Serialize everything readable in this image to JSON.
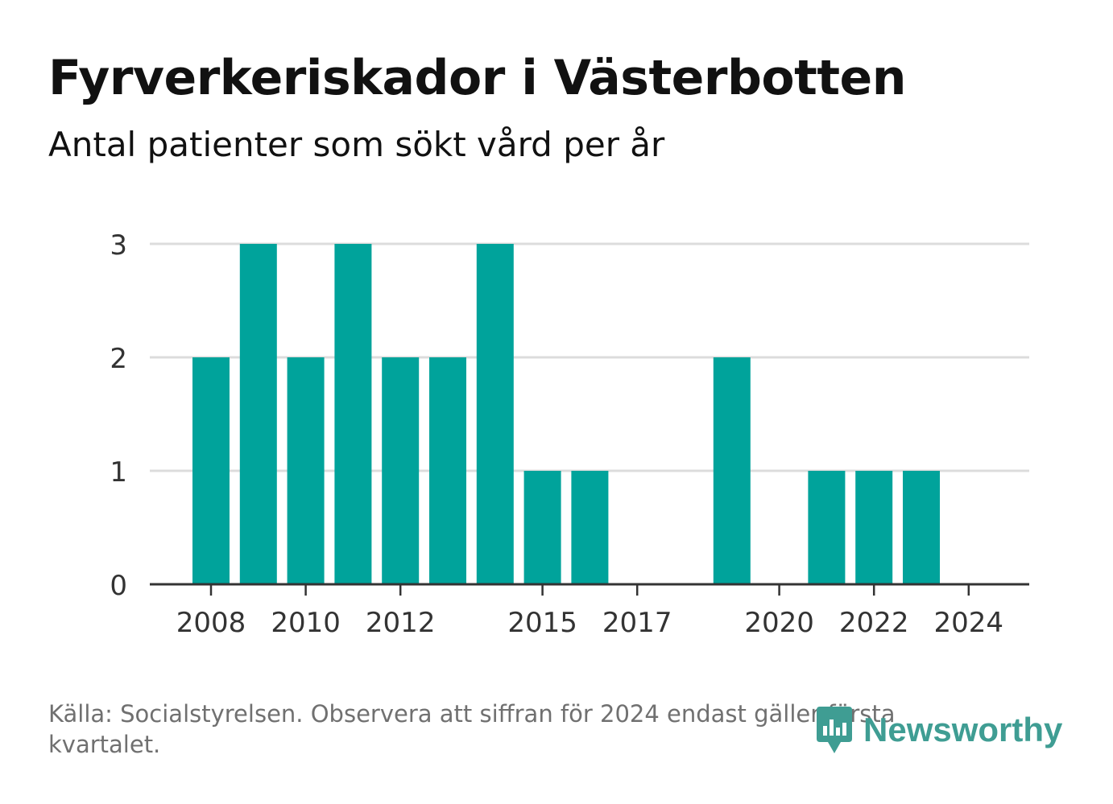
{
  "header": {
    "title": "Fyrverkeriskador i Västerbotten",
    "subtitle": "Antal patienter som sökt vård per år"
  },
  "chart_data": {
    "type": "bar",
    "x": [
      2008,
      2009,
      2010,
      2011,
      2012,
      2013,
      2014,
      2015,
      2016,
      2017,
      2018,
      2019,
      2020,
      2021,
      2022,
      2023,
      2024
    ],
    "values": [
      2,
      3,
      2,
      3,
      2,
      2,
      3,
      1,
      1,
      0,
      0,
      2,
      0,
      1,
      1,
      1,
      0
    ],
    "x_tick_labels": [
      2008,
      2010,
      2012,
      2015,
      2017,
      2020,
      2022,
      2024
    ],
    "y_ticks": [
      0,
      1,
      2,
      3
    ],
    "ylim": [
      0,
      3
    ],
    "grid": true,
    "bar_color": "#00a39b"
  },
  "footer": {
    "source": "Källa: Socialstyrelsen. Observera att siffran för 2024 endast gäller första kvartalet.",
    "brand": "Newsworthy",
    "brand_icon": "newsworthy-logo-icon",
    "brand_color": "#3f9d93"
  }
}
